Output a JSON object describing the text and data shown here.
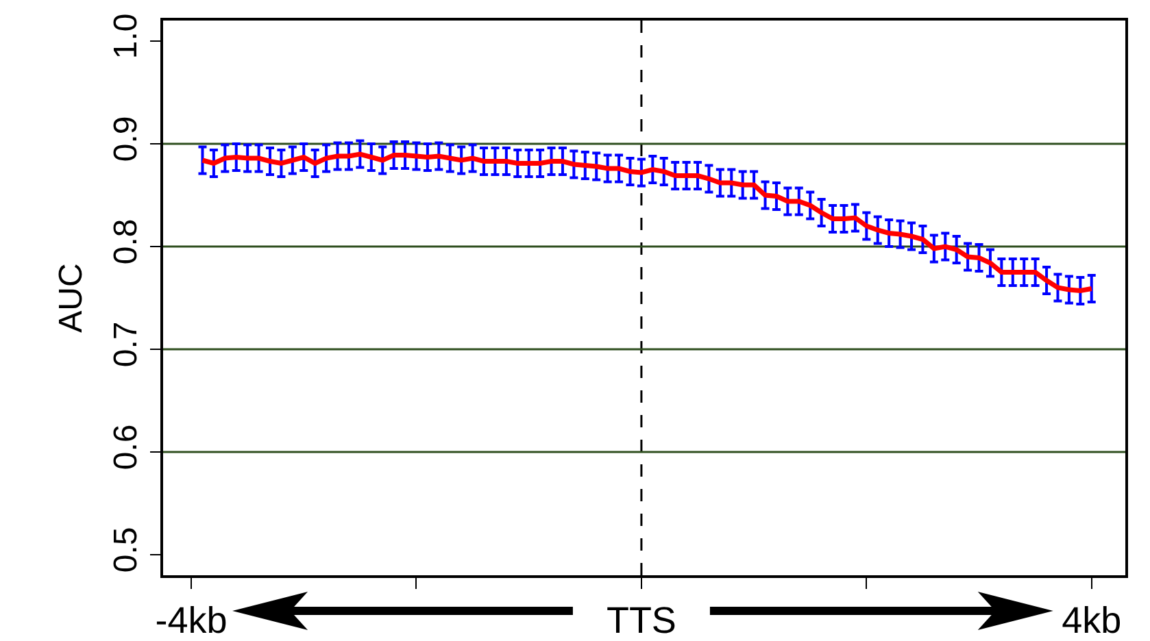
{
  "chart_data": {
    "type": "line",
    "ylabel": "AUC",
    "x": [
      -3.9,
      -3.8,
      -3.7,
      -3.6,
      -3.5,
      -3.4,
      -3.3,
      -3.2,
      -3.1,
      -3.0,
      -2.9,
      -2.8,
      -2.7,
      -2.6,
      -2.5,
      -2.4,
      -2.3,
      -2.2,
      -2.1,
      -2.0,
      -1.9,
      -1.8,
      -1.7,
      -1.6,
      -1.5,
      -1.4,
      -1.3,
      -1.2,
      -1.1,
      -1.0,
      -0.9,
      -0.8,
      -0.7,
      -0.6,
      -0.5,
      -0.4,
      -0.3,
      -0.2,
      -0.1,
      0,
      0.1,
      0.2,
      0.3,
      0.4,
      0.5,
      0.6,
      0.7,
      0.8,
      0.9,
      1.0,
      1.1,
      1.2,
      1.3,
      1.4,
      1.5,
      1.6,
      1.7,
      1.8,
      1.9,
      2.0,
      2.1,
      2.2,
      2.3,
      2.4,
      2.5,
      2.6,
      2.7,
      2.8,
      2.9,
      3.0,
      3.1,
      3.2,
      3.3,
      3.4,
      3.5,
      3.6,
      3.7,
      3.8,
      3.9,
      4.0
    ],
    "series": [
      {
        "color": "#ff0000",
        "values": [
          0.884,
          0.881,
          0.886,
          0.887,
          0.886,
          0.886,
          0.883,
          0.881,
          0.884,
          0.887,
          0.881,
          0.886,
          0.888,
          0.888,
          0.89,
          0.887,
          0.884,
          0.889,
          0.889,
          0.888,
          0.887,
          0.888,
          0.886,
          0.884,
          0.886,
          0.883,
          0.883,
          0.883,
          0.881,
          0.881,
          0.881,
          0.883,
          0.883,
          0.88,
          0.879,
          0.878,
          0.876,
          0.876,
          0.873,
          0.872,
          0.875,
          0.873,
          0.869,
          0.869,
          0.869,
          0.866,
          0.862,
          0.862,
          0.86,
          0.86,
          0.85,
          0.849,
          0.844,
          0.844,
          0.84,
          0.833,
          0.827,
          0.827,
          0.828,
          0.82,
          0.816,
          0.813,
          0.812,
          0.81,
          0.807,
          0.798,
          0.8,
          0.797,
          0.79,
          0.789,
          0.784,
          0.775,
          0.775,
          0.775,
          0.775,
          0.767,
          0.76,
          0.758,
          0.757,
          0.759
        ],
        "errors": [
          0.013,
          0.013,
          0.013,
          0.013,
          0.013,
          0.013,
          0.013,
          0.013,
          0.013,
          0.013,
          0.013,
          0.013,
          0.013,
          0.013,
          0.013,
          0.013,
          0.013,
          0.013,
          0.013,
          0.013,
          0.013,
          0.013,
          0.013,
          0.013,
          0.013,
          0.013,
          0.013,
          0.013,
          0.013,
          0.013,
          0.013,
          0.013,
          0.013,
          0.013,
          0.013,
          0.013,
          0.013,
          0.013,
          0.013,
          0.013,
          0.013,
          0.013,
          0.013,
          0.013,
          0.013,
          0.013,
          0.013,
          0.013,
          0.013,
          0.013,
          0.013,
          0.013,
          0.013,
          0.013,
          0.013,
          0.013,
          0.013,
          0.013,
          0.013,
          0.013,
          0.013,
          0.013,
          0.013,
          0.013,
          0.013,
          0.013,
          0.013,
          0.013,
          0.013,
          0.013,
          0.013,
          0.013,
          0.013,
          0.013,
          0.013,
          0.013,
          0.013,
          0.013,
          0.013,
          0.013
        ]
      }
    ],
    "xlim": [
      -4.25,
      4.3
    ],
    "xticks": [
      {
        "value": -4,
        "label": "-4kb"
      },
      {
        "value": -2,
        "label": null
      },
      {
        "value": 0,
        "label": "TTS"
      },
      {
        "value": 2,
        "label": null
      },
      {
        "value": 4,
        "label": "4kb"
      }
    ],
    "ylim": [
      0.48,
      1.02
    ],
    "yticks": [
      0.5,
      0.6,
      0.7,
      0.8,
      0.9,
      {
        "value": 1.0,
        "label": "1.0"
      }
    ],
    "grid": false,
    "marker": "none",
    "line_style": "solid",
    "ref_lines": [
      {
        "axis": "x",
        "value": 0,
        "color": "#000000",
        "line_style": "dashed"
      },
      {
        "axis": "y",
        "value": 0.6,
        "color": "#2f4f1f",
        "line_style": "solid"
      },
      {
        "axis": "y",
        "value": 0.7,
        "color": "#2f4f1f",
        "line_style": "solid"
      },
      {
        "axis": "y",
        "value": 0.8,
        "color": "#2f4f1f",
        "line_style": "solid"
      },
      {
        "axis": "y",
        "value": 0.9,
        "color": "#2f4f1f",
        "line_style": "solid"
      }
    ]
  }
}
